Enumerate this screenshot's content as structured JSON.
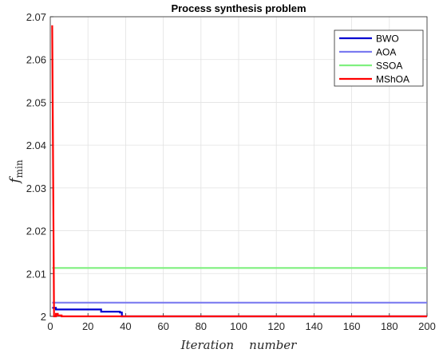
{
  "chart_data": {
    "type": "line",
    "title": "Process synthesis problem",
    "xlabel": "Iteration    number",
    "ylabel_main": "f",
    "ylabel_sub": "min",
    "xlim": [
      0,
      200
    ],
    "ylim": [
      2,
      2.07
    ],
    "xticks": [
      0,
      20,
      40,
      60,
      80,
      100,
      120,
      140,
      160,
      180,
      200
    ],
    "xtick_labels": [
      "0",
      "20",
      "40",
      "60",
      "80",
      "100",
      "120",
      "140",
      "160",
      "180",
      "200"
    ],
    "yticks": [
      2,
      2.01,
      2.02,
      2.03,
      2.04,
      2.05,
      2.06,
      2.07
    ],
    "ytick_labels": [
      "2",
      "2.01",
      "2.02",
      "2.03",
      "2.04",
      "2.05",
      "2.06",
      "2.07"
    ],
    "grid": true,
    "legend_position": "top-right",
    "series": [
      {
        "name": "BWO",
        "color": "#0000d0",
        "x": [
          1,
          3,
          3,
          27,
          27,
          37,
          37,
          38,
          38,
          200
        ],
        "y": [
          2.002,
          2.002,
          2.0016,
          2.0016,
          2.0011,
          2.0011,
          2.0009,
          2.0009,
          2.0,
          2.0
        ]
      },
      {
        "name": "AOA",
        "color": "#7b7bf0",
        "x": [
          1,
          200
        ],
        "y": [
          2.0032,
          2.0032
        ]
      },
      {
        "name": "SSOA",
        "color": "#7ff07f",
        "x": [
          1,
          200
        ],
        "y": [
          2.0113,
          2.0113
        ]
      },
      {
        "name": "MShOA",
        "color": "#ff0000",
        "x": [
          1,
          2,
          3,
          3,
          4,
          4,
          6,
          6,
          200
        ],
        "y": [
          2.068,
          2.0,
          2.0,
          2.0006,
          2.0006,
          2.0002,
          2.0002,
          2.0,
          2.0
        ]
      }
    ]
  }
}
